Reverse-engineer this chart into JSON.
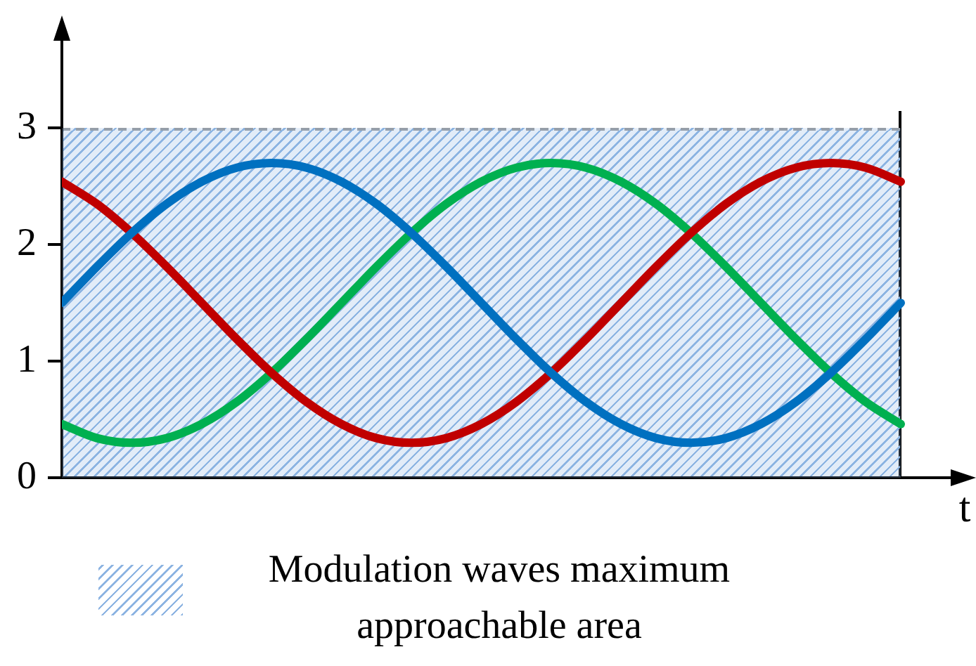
{
  "chart_data": {
    "type": "line",
    "xlabel": "t",
    "categories": [
      null,
      null,
      null,
      null,
      null,
      null,
      null,
      null,
      null,
      null,
      null,
      null,
      null,
      null,
      null,
      null,
      null,
      null,
      null,
      null,
      null,
      null,
      null,
      null,
      null
    ],
    "series": [
      {
        "color": "#0070c0",
        "values": [
          1.5,
          1.81,
          2.1,
          2.35,
          2.54,
          2.66,
          2.7,
          2.66,
          2.54,
          2.35,
          2.1,
          1.81,
          1.5,
          1.19,
          0.9,
          0.65,
          0.46,
          0.34,
          0.3,
          0.34,
          0.46,
          0.65,
          0.9,
          1.19,
          1.5
        ]
      },
      {
        "color": "#c00000",
        "values": [
          2.54,
          2.35,
          2.1,
          1.81,
          1.5,
          1.19,
          0.9,
          0.65,
          0.46,
          0.34,
          0.3,
          0.34,
          0.46,
          0.65,
          0.9,
          1.19,
          1.5,
          1.81,
          2.1,
          2.35,
          2.54,
          2.66,
          2.7,
          2.66,
          2.54
        ]
      },
      {
        "color": "#00b050",
        "values": [
          0.46,
          0.34,
          0.3,
          0.34,
          0.46,
          0.65,
          0.9,
          1.19,
          1.5,
          1.81,
          2.1,
          2.35,
          2.54,
          2.66,
          2.7,
          2.66,
          2.54,
          2.35,
          2.1,
          1.81,
          1.5,
          1.19,
          0.9,
          0.65,
          0.46
        ]
      }
    ],
    "ylim": [
      0,
      3.8
    ],
    "yticks": [
      0,
      1,
      2,
      3
    ],
    "bands": [
      {
        "axis": "y",
        "from": 0,
        "to": 3,
        "label": "Modulation waves maximum approachable area",
        "color": "#8db4e2"
      }
    ],
    "marker": "none",
    "line_style": "solid"
  }
}
